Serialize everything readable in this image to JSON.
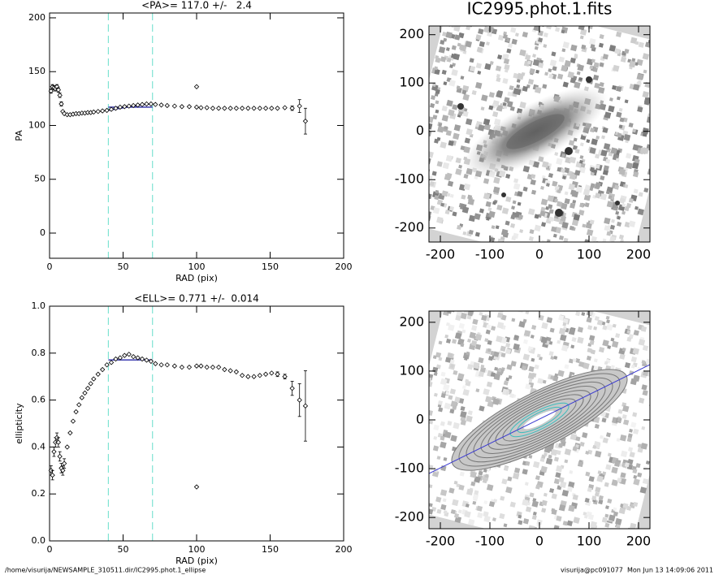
{
  "chart_data": [
    {
      "type": "scatter",
      "title": "<PA>= 117.0 +/-   2.4",
      "xlabel": "RAD (pix)",
      "ylabel": "PA",
      "xlim": [
        0,
        200
      ],
      "ylim": [
        -23.4,
        204.5
      ],
      "xticks": [
        0,
        50,
        100,
        150,
        200
      ],
      "yticks": [
        0,
        50,
        100,
        150,
        200
      ],
      "color": "#000000",
      "vline_color": "#7fe3d3",
      "fit_color": "#2a2aa8",
      "vlines": [
        40,
        70
      ],
      "fits": [
        {
          "x": [
            40,
            70
          ],
          "values": [
            117,
            117
          ]
        },
        {
          "x": [
            40,
            45,
            50,
            55,
            60,
            65,
            70
          ],
          "values": [
            114,
            115.2,
            116.3,
            117.4,
            118.5,
            119.4,
            120
          ]
        }
      ],
      "x": [
        1,
        2,
        3,
        4,
        5,
        6,
        7,
        8,
        9,
        10,
        12,
        14,
        16,
        18,
        20,
        22,
        24,
        26,
        28,
        30,
        33,
        36,
        39,
        42,
        45,
        48,
        51,
        54,
        57,
        60,
        63,
        66,
        69,
        72,
        76,
        80,
        85,
        90,
        95,
        100,
        100,
        103,
        107,
        111,
        115,
        119,
        123,
        127,
        131,
        135,
        139,
        143,
        147,
        151,
        155,
        160,
        165,
        170,
        174
      ],
      "values": [
        132,
        136,
        135,
        134,
        136,
        133,
        128,
        120,
        113,
        111,
        110,
        110,
        110.5,
        111,
        111,
        111.5,
        111.5,
        112,
        112,
        112.5,
        113,
        113.5,
        114,
        115,
        116,
        117,
        117.5,
        118,
        118.5,
        119,
        119.5,
        120,
        120,
        119.5,
        119,
        118.5,
        118,
        117.5,
        117.5,
        136,
        117,
        116.5,
        116.5,
        116,
        116,
        116,
        116,
        116,
        116,
        116,
        116,
        116,
        116,
        116,
        116,
        116.5,
        116,
        118,
        104
      ],
      "errors": [
        2,
        2,
        2,
        2,
        2,
        2,
        2,
        2,
        1,
        1,
        0.5,
        0.5,
        0.5,
        0.5,
        0.5,
        0.5,
        0.5,
        0.5,
        0.5,
        0.5,
        0.5,
        0.5,
        0.5,
        0.5,
        0.5,
        0.5,
        0.5,
        0.5,
        0.5,
        0.5,
        0.5,
        0.5,
        0.5,
        0.5,
        0.5,
        0.5,
        0.5,
        0.5,
        0.5,
        1,
        0.5,
        0.5,
        0.5,
        0.5,
        0.5,
        0.5,
        0.5,
        0.5,
        0.5,
        0.5,
        0.5,
        0.5,
        0.5,
        0.5,
        0.5,
        0.8,
        2,
        6,
        12
      ]
    },
    {
      "type": "scatter",
      "title": "<ELL>= 0.771 +/-  0.014",
      "xlabel": "RAD (pix)",
      "ylabel": "ellipticity",
      "xlim": [
        0,
        200
      ],
      "ylim": [
        0,
        1
      ],
      "xticks": [
        0,
        50,
        100,
        150,
        200
      ],
      "yticks": [
        {
          "value": 0,
          "label": "0.0"
        },
        0.2,
        0.4,
        0.6,
        0.8,
        {
          "value": 1,
          "label": "1.0"
        }
      ],
      "color": "#000000",
      "vline_color": "#7fe3d3",
      "fit_color": "#2a2aa8",
      "vlines": [
        40,
        70
      ],
      "fits": [
        {
          "x": [
            40,
            70
          ],
          "values": [
            0.771,
            0.771
          ]
        }
      ],
      "x": [
        1,
        2,
        3,
        4,
        5,
        6,
        7,
        8,
        9,
        10,
        12,
        14,
        16,
        18,
        20,
        22,
        24,
        26,
        28,
        30,
        33,
        36,
        39,
        42,
        45,
        48,
        51,
        54,
        57,
        60,
        63,
        66,
        69,
        72,
        76,
        80,
        85,
        90,
        95,
        100,
        100,
        103,
        107,
        111,
        115,
        119,
        123,
        127,
        131,
        135,
        139,
        143,
        147,
        151,
        155,
        160,
        165,
        170,
        174
      ],
      "values": [
        0.3,
        0.28,
        0.38,
        0.42,
        0.44,
        0.42,
        0.36,
        0.31,
        0.3,
        0.33,
        0.4,
        0.46,
        0.51,
        0.55,
        0.58,
        0.61,
        0.63,
        0.65,
        0.67,
        0.69,
        0.71,
        0.73,
        0.75,
        0.76,
        0.775,
        0.78,
        0.79,
        0.795,
        0.785,
        0.78,
        0.775,
        0.77,
        0.765,
        0.755,
        0.75,
        0.75,
        0.745,
        0.74,
        0.74,
        0.23,
        0.745,
        0.745,
        0.74,
        0.74,
        0.74,
        0.73,
        0.725,
        0.72,
        0.705,
        0.7,
        0.7,
        0.705,
        0.71,
        0.715,
        0.71,
        0.7,
        0.65,
        0.6,
        0.575
      ],
      "errors": [
        0.02,
        0.02,
        0.02,
        0.02,
        0.02,
        0.02,
        0.02,
        0.02,
        0.02,
        0.02,
        0.005,
        0.005,
        0.005,
        0.005,
        0.005,
        0.005,
        0.005,
        0.005,
        0.005,
        0.005,
        0.005,
        0.005,
        0.005,
        0.005,
        0.005,
        0.005,
        0.005,
        0.005,
        0.005,
        0.005,
        0.005,
        0.005,
        0.005,
        0.005,
        0.005,
        0.005,
        0.005,
        0.005,
        0.005,
        0.005,
        0.005,
        0.005,
        0.005,
        0.005,
        0.005,
        0.005,
        0.005,
        0.005,
        0.005,
        0.005,
        0.005,
        0.005,
        0.005,
        0.005,
        0.01,
        0.01,
        0.03,
        0.07,
        0.15
      ]
    },
    {
      "type": "image",
      "title": "IC2995.phot.1.fits",
      "xlim": [
        -223,
        223
      ],
      "ylim": [
        -229,
        218
      ],
      "xticks": [
        -200,
        -100,
        0,
        100,
        200
      ],
      "yticks": [
        -200,
        -100,
        0,
        100,
        200
      ]
    },
    {
      "type": "image",
      "contours": true,
      "xlim": [
        -223,
        223
      ],
      "ylim": [
        -223,
        223
      ],
      "xticks": [
        -200,
        -100,
        0,
        100,
        200
      ],
      "yticks": [
        -200,
        -100,
        0,
        100,
        200
      ]
    }
  ],
  "footer": {
    "path": "/home/visurija/NEWSAMPLE_310511.dir/IC2995.phot.1_ellipse",
    "stamp": "visurija@pc091077  Mon Jun 13 14:09:06 2011"
  }
}
